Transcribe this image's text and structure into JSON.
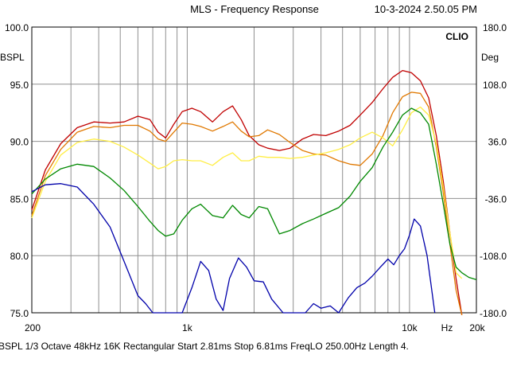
{
  "header": {
    "title": "MLS - Frequency Response",
    "timestamp": "10-3-2024 2.50.05 PM",
    "brand": "CLIO"
  },
  "axes": {
    "left_unit": "BSPL",
    "right_unit": "Deg",
    "left_ticks": [
      "100.0",
      "95.0",
      "90.0",
      "85.0",
      "80.0",
      "75.0"
    ],
    "right_ticks": [
      "180.0",
      "108.0",
      "36.0",
      "-36.0",
      "-108.0",
      "-180.0"
    ],
    "x_ticks": [
      "200",
      "1k",
      "10k",
      "Hz",
      "20k"
    ]
  },
  "footer": {
    "text": "BSPL   1/3 Octave   48kHz   16K   Rectangular   Start 2.81ms     Stop 6.81ms     FreqLO 250.00Hz    Length 4."
  },
  "chart_data": {
    "type": "line",
    "title": "MLS - Frequency Response",
    "xlabel": "Hz",
    "ylabel": "BSPL",
    "y2label": "Deg",
    "x_scale": "log",
    "xlim": [
      200,
      20000
    ],
    "ylim": [
      75,
      100
    ],
    "y2lim": [
      -180,
      180
    ],
    "grid": true,
    "series": [
      {
        "color": "#c00000",
        "x": [
          200,
          230,
          270,
          320,
          380,
          450,
          520,
          600,
          680,
          740,
          800,
          870,
          950,
          1050,
          1150,
          1300,
          1450,
          1600,
          1750,
          1900,
          2100,
          2300,
          2600,
          2900,
          3300,
          3700,
          4200,
          4800,
          5400,
          6000,
          6800,
          7600,
          8400,
          9300,
          10200,
          11200,
          12200,
          13200,
          14200,
          15200,
          16200,
          17200
        ],
        "y": [
          84.0,
          87.5,
          89.8,
          91.2,
          91.7,
          91.6,
          91.7,
          92.2,
          91.9,
          90.8,
          90.3,
          91.5,
          92.6,
          92.9,
          92.6,
          91.7,
          92.6,
          93.1,
          91.9,
          90.5,
          89.7,
          89.4,
          89.2,
          89.4,
          90.2,
          90.6,
          90.5,
          90.9,
          91.4,
          92.3,
          93.4,
          94.6,
          95.6,
          96.2,
          96.0,
          95.3,
          93.8,
          90.5,
          86.5,
          82.0,
          78.0,
          74.8
        ]
      },
      {
        "color": "#e07800",
        "x": [
          200,
          230,
          270,
          320,
          380,
          450,
          520,
          600,
          680,
          740,
          800,
          870,
          950,
          1050,
          1150,
          1300,
          1450,
          1600,
          1750,
          1900,
          2100,
          2300,
          2600,
          2900,
          3300,
          3700,
          4200,
          4800,
          5400,
          6000,
          6800,
          7600,
          8400,
          9300,
          10200,
          11200,
          12200,
          13200,
          14200,
          15200,
          16200,
          17200
        ],
        "y": [
          83.5,
          87.0,
          89.3,
          90.8,
          91.3,
          91.2,
          91.4,
          91.4,
          90.9,
          90.2,
          90.0,
          90.8,
          91.6,
          91.5,
          91.3,
          90.9,
          91.3,
          91.7,
          90.9,
          90.4,
          90.5,
          91.0,
          90.6,
          89.9,
          89.2,
          88.9,
          88.8,
          88.3,
          88.0,
          87.9,
          88.9,
          90.5,
          92.5,
          93.9,
          94.3,
          94.2,
          93.0,
          89.5,
          85.5,
          81.0,
          77.0,
          74.8
        ]
      },
      {
        "color": "#ffee44",
        "x": [
          200,
          230,
          270,
          320,
          380,
          450,
          520,
          600,
          680,
          740,
          800,
          870,
          950,
          1050,
          1150,
          1300,
          1450,
          1600,
          1750,
          1900,
          2100,
          2300,
          2600,
          2900,
          3300,
          3700,
          4200,
          4800,
          5400,
          6000,
          6800,
          7600,
          8400,
          9300,
          10200,
          11200,
          12200,
          13200,
          14200,
          15200,
          16200,
          17200
        ],
        "y": [
          83.3,
          86.5,
          88.8,
          89.9,
          90.2,
          90.0,
          89.5,
          88.8,
          88.1,
          87.6,
          87.8,
          88.3,
          88.4,
          88.3,
          88.3,
          87.9,
          88.6,
          89.0,
          88.3,
          88.3,
          88.7,
          88.6,
          88.6,
          88.5,
          88.6,
          88.8,
          89.0,
          89.3,
          89.7,
          90.3,
          90.8,
          90.3,
          89.6,
          91.0,
          92.5,
          93.0,
          92.3,
          89.8,
          86.0,
          82.0,
          78.5,
          78.0
        ]
      },
      {
        "color": "#008800",
        "x": [
          200,
          230,
          270,
          320,
          380,
          450,
          520,
          600,
          680,
          740,
          800,
          870,
          950,
          1050,
          1150,
          1300,
          1450,
          1600,
          1750,
          1900,
          2100,
          2300,
          2600,
          2900,
          3300,
          3700,
          4200,
          4800,
          5400,
          6000,
          6800,
          7600,
          8400,
          9300,
          10200,
          11200,
          12200,
          13200,
          14200,
          15200,
          16200,
          17200,
          18500,
          20000
        ],
        "y": [
          85.4,
          86.7,
          87.6,
          88.0,
          87.8,
          86.8,
          85.7,
          84.3,
          83.0,
          82.2,
          81.7,
          81.9,
          83.1,
          84.1,
          84.5,
          83.5,
          83.3,
          84.4,
          83.6,
          83.3,
          84.3,
          84.1,
          81.9,
          82.2,
          82.8,
          83.2,
          83.7,
          84.2,
          85.2,
          86.5,
          87.7,
          89.5,
          90.8,
          92.3,
          92.9,
          92.5,
          91.5,
          88.0,
          84.5,
          81.0,
          79.0,
          78.5,
          78.1,
          77.9
        ]
      },
      {
        "color": "#0000aa",
        "x": [
          200,
          230,
          270,
          320,
          380,
          450,
          520,
          600,
          650,
          700,
          760,
          850,
          950,
          1050,
          1150,
          1250,
          1350,
          1450,
          1550,
          1700,
          1850,
          2000,
          2200,
          2400,
          2700,
          3100,
          3400,
          3700,
          4000,
          4400,
          4800,
          5300,
          5800,
          6300,
          6800,
          7400,
          8000,
          8500,
          9000,
          9500,
          10000,
          10500,
          11200,
          12000,
          12500,
          13000
        ],
        "y": [
          85.6,
          86.2,
          86.3,
          86.0,
          84.5,
          82.5,
          79.5,
          76.5,
          75.8,
          75.0,
          75.0,
          75.0,
          75.0,
          77.2,
          79.5,
          78.7,
          76.2,
          75.2,
          78.0,
          79.8,
          79.0,
          77.8,
          77.7,
          76.2,
          75.0,
          75.0,
          75.0,
          75.8,
          75.4,
          75.6,
          75.0,
          76.3,
          77.2,
          77.6,
          78.2,
          79.0,
          79.7,
          79.2,
          80.0,
          80.6,
          81.8,
          83.2,
          82.6,
          80.0,
          77.5,
          75.0
        ]
      }
    ]
  }
}
